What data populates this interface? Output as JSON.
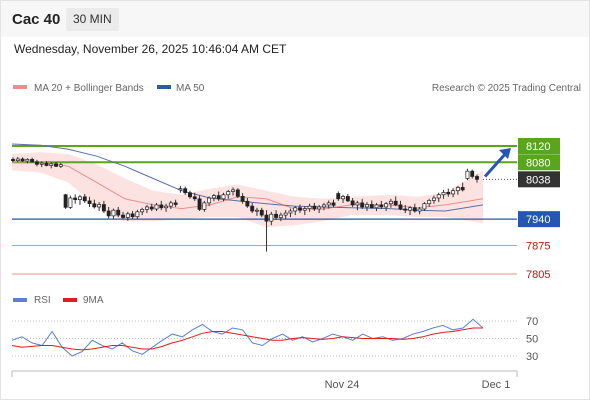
{
  "header": {
    "instrument": "Cac 40",
    "timeframe": "30 MIN",
    "timestamp": "Wednesday, November 26, 2025 10:46:04 AM CET"
  },
  "legend": {
    "ma20": {
      "label": "MA 20 + Bollinger Bands",
      "color": "#f08c8c"
    },
    "ma50": {
      "label": "MA 50",
      "color": "#2d5aa0"
    },
    "copyright": "Research © 2025 Trading Central"
  },
  "rsi_legend": {
    "rsi": {
      "label": "RSI",
      "color": "#5b7fd6"
    },
    "ma9": {
      "label": "9MA",
      "color": "#e31b1b"
    }
  },
  "levels": [
    {
      "label": "8120",
      "kind": "resistance",
      "color": "#5aa51e"
    },
    {
      "label": "8080",
      "kind": "resistance",
      "color": "#5aa51e"
    },
    {
      "label": "8038",
      "kind": "last",
      "color": "#333333"
    },
    {
      "label": "7940",
      "kind": "pivot",
      "color": "#2456b5"
    },
    {
      "label": "7875",
      "kind": "support",
      "color": "#c21313"
    },
    {
      "label": "7805",
      "kind": "support",
      "color": "#c21313"
    }
  ],
  "rsi_ticks": [
    "70",
    "50",
    "30"
  ],
  "dates": [
    "Nov 24",
    "Dec 1"
  ],
  "chart_data": {
    "type": "candlestick",
    "price_levels": [
      8120,
      8080,
      8038,
      7940,
      7875,
      7805
    ],
    "ylim": [
      7780,
      8165
    ],
    "candles": [
      [
        8087,
        8092,
        8081,
        8084
      ],
      [
        8084,
        8093,
        8080,
        8088
      ],
      [
        8088,
        8092,
        8081,
        8083
      ],
      [
        8083,
        8090,
        8077,
        8087
      ],
      [
        8087,
        8091,
        8079,
        8081
      ],
      [
        8081,
        8086,
        8070,
        8075
      ],
      [
        8075,
        8082,
        8068,
        8078
      ],
      [
        8078,
        8083,
        8070,
        8072
      ],
      [
        8072,
        8080,
        8065,
        8076
      ],
      [
        8076,
        8081,
        8068,
        8070
      ],
      [
        8070,
        8078,
        8066,
        8074
      ],
      [
        8000,
        8002,
        7965,
        7969
      ],
      [
        7969,
        7998,
        7965,
        7992
      ],
      [
        7992,
        8001,
        7978,
        7988
      ],
      [
        7988,
        8000,
        7975,
        7995
      ],
      [
        7995,
        8002,
        7980,
        7985
      ],
      [
        7985,
        7995,
        7970,
        7978
      ],
      [
        7978,
        7988,
        7966,
        7970
      ],
      [
        7970,
        7982,
        7960,
        7976
      ],
      [
        7976,
        7985,
        7955,
        7960
      ],
      [
        7960,
        7970,
        7942,
        7948
      ],
      [
        7948,
        7966,
        7940,
        7962
      ],
      [
        7962,
        7970,
        7945,
        7950
      ],
      [
        7950,
        7958,
        7940,
        7944
      ],
      [
        7944,
        7958,
        7936,
        7953
      ],
      [
        7953,
        7960,
        7940,
        7946
      ],
      [
        7946,
        7963,
        7940,
        7958
      ],
      [
        7958,
        7968,
        7950,
        7964
      ],
      [
        7964,
        7975,
        7955,
        7970
      ],
      [
        7970,
        7978,
        7960,
        7965
      ],
      [
        7965,
        7980,
        7960,
        7975
      ],
      [
        7975,
        7985,
        7962,
        7968
      ],
      [
        7968,
        7978,
        7958,
        7972
      ],
      [
        7972,
        7985,
        7965,
        7980
      ],
      [
        7980,
        7988,
        7970,
        7976
      ],
      [
        8012,
        8022,
        8005,
        8015
      ],
      [
        8015,
        8020,
        8000,
        8005
      ],
      [
        8005,
        8010,
        7990,
        7995
      ],
      [
        7995,
        8005,
        7985,
        7990
      ],
      [
        7990,
        7998,
        7960,
        7964
      ],
      [
        7964,
        7985,
        7958,
        7980
      ],
      [
        7980,
        7996,
        7972,
        7992
      ],
      [
        7992,
        8002,
        7984,
        7998
      ],
      [
        7998,
        8008,
        7985,
        7990
      ],
      [
        7990,
        8005,
        7984,
        8000
      ],
      [
        8000,
        8012,
        7990,
        8008
      ],
      [
        8008,
        8018,
        7998,
        8012
      ],
      [
        8012,
        8016,
        7992,
        7996
      ],
      [
        7996,
        8004,
        7978,
        7984
      ],
      [
        7984,
        7992,
        7968,
        7972
      ],
      [
        7972,
        7980,
        7955,
        7960
      ],
      [
        7960,
        7968,
        7948,
        7962
      ],
      [
        7962,
        7968,
        7945,
        7950
      ],
      [
        7950,
        7962,
        7860,
        7935
      ],
      [
        7935,
        7958,
        7925,
        7952
      ],
      [
        7952,
        7962,
        7938,
        7944
      ],
      [
        7944,
        7956,
        7935,
        7950
      ],
      [
        7950,
        7962,
        7940,
        7955
      ],
      [
        7955,
        7966,
        7945,
        7960
      ],
      [
        7960,
        7972,
        7950,
        7968
      ],
      [
        7968,
        7976,
        7955,
        7962
      ],
      [
        7962,
        7972,
        7950,
        7966
      ],
      [
        7966,
        7978,
        7958,
        7972
      ],
      [
        7972,
        7980,
        7960,
        7965
      ],
      [
        7965,
        7975,
        7955,
        7970
      ],
      [
        7970,
        7980,
        7962,
        7975
      ],
      [
        7975,
        7986,
        7966,
        7980
      ],
      [
        7980,
        7988,
        7970,
        7974
      ],
      [
        8003,
        8008,
        7985,
        7990
      ],
      [
        7990,
        8000,
        7980,
        7996
      ],
      [
        7996,
        8002,
        7982,
        7985
      ],
      [
        7985,
        7992,
        7970,
        7975
      ],
      [
        7975,
        7985,
        7962,
        7980
      ],
      [
        7980,
        7990,
        7965,
        7970
      ],
      [
        7970,
        7982,
        7960,
        7976
      ],
      [
        7976,
        7986,
        7966,
        7968
      ],
      [
        7968,
        7980,
        7960,
        7975
      ],
      [
        7975,
        7985,
        7965,
        7970
      ],
      [
        7970,
        7982,
        7960,
        7978
      ],
      [
        7978,
        7990,
        7968,
        7984
      ],
      [
        7984,
        7996,
        7972,
        7975
      ],
      [
        7975,
        7985,
        7962,
        7965
      ],
      [
        7965,
        7975,
        7955,
        7962
      ],
      [
        7962,
        7972,
        7950,
        7968
      ],
      [
        7968,
        7978,
        7956,
        7960
      ],
      [
        7960,
        7970,
        7952,
        7965
      ],
      [
        7965,
        7982,
        7960,
        7978
      ],
      [
        7978,
        7990,
        7970,
        7986
      ],
      [
        7986,
        7998,
        7978,
        7992
      ],
      [
        7992,
        8005,
        7982,
        8000
      ],
      [
        8000,
        8012,
        7990,
        8006
      ],
      [
        8006,
        8015,
        7995,
        8002
      ],
      [
        8002,
        8016,
        7994,
        8010
      ],
      [
        8010,
        8022,
        8000,
        8018
      ],
      [
        8018,
        8030,
        8008,
        8012
      ],
      [
        8040,
        8064,
        8036,
        8058
      ],
      [
        8058,
        8062,
        8040,
        8045
      ],
      [
        8045,
        8050,
        8030,
        8038
      ]
    ],
    "ma50": [
      [
        0,
        8125
      ],
      [
        0.06,
        8122
      ],
      [
        0.12,
        8112
      ],
      [
        0.18,
        8095
      ],
      [
        0.24,
        8070
      ],
      [
        0.3,
        8040
      ],
      [
        0.36,
        8010
      ],
      [
        0.42,
        7992
      ],
      [
        0.48,
        7985
      ],
      [
        0.54,
        7978
      ],
      [
        0.6,
        7972
      ],
      [
        0.66,
        7970
      ],
      [
        0.72,
        7968
      ],
      [
        0.8,
        7966
      ],
      [
        0.86,
        7962
      ],
      [
        0.92,
        7960
      ],
      [
        1.0,
        7975
      ]
    ],
    "ma20": [
      [
        0,
        8080
      ],
      [
        0.06,
        8082
      ],
      [
        0.12,
        8070
      ],
      [
        0.18,
        8030
      ],
      [
        0.24,
        7990
      ],
      [
        0.3,
        7975
      ],
      [
        0.36,
        7966
      ],
      [
        0.42,
        7975
      ],
      [
        0.48,
        7995
      ],
      [
        0.54,
        7990
      ],
      [
        0.6,
        7965
      ],
      [
        0.66,
        7965
      ],
      [
        0.72,
        7975
      ],
      [
        0.8,
        7975
      ],
      [
        0.86,
        7968
      ],
      [
        0.92,
        7975
      ],
      [
        1.0,
        7990
      ]
    ],
    "bb_upper": [
      [
        0,
        8100
      ],
      [
        0.06,
        8105
      ],
      [
        0.12,
        8100
      ],
      [
        0.18,
        8075
      ],
      [
        0.24,
        8040
      ],
      [
        0.3,
        8010
      ],
      [
        0.36,
        8000
      ],
      [
        0.42,
        8015
      ],
      [
        0.48,
        8025
      ],
      [
        0.54,
        8010
      ],
      [
        0.6,
        7995
      ],
      [
        0.66,
        7990
      ],
      [
        0.72,
        7995
      ],
      [
        0.8,
        8000
      ],
      [
        0.86,
        7995
      ],
      [
        0.92,
        8005
      ],
      [
        1.0,
        8060
      ]
    ],
    "bb_lower": [
      [
        0,
        8060
      ],
      [
        0.06,
        8055
      ],
      [
        0.12,
        8030
      ],
      [
        0.18,
        7970
      ],
      [
        0.24,
        7935
      ],
      [
        0.3,
        7935
      ],
      [
        0.36,
        7940
      ],
      [
        0.42,
        7945
      ],
      [
        0.48,
        7945
      ],
      [
        0.54,
        7920
      ],
      [
        0.6,
        7925
      ],
      [
        0.66,
        7935
      ],
      [
        0.72,
        7950
      ],
      [
        0.8,
        7950
      ],
      [
        0.86,
        7945
      ],
      [
        0.92,
        7945
      ],
      [
        1.0,
        7930
      ]
    ],
    "rsi": [
      48,
      52,
      45,
      42,
      58,
      40,
      30,
      35,
      48,
      42,
      38,
      45,
      36,
      32,
      40,
      48,
      55,
      52,
      60,
      66,
      58,
      55,
      62,
      60,
      45,
      42,
      50,
      55,
      48,
      52,
      46,
      50,
      55,
      52,
      48,
      55,
      50,
      52,
      48,
      50,
      55,
      58,
      62,
      65,
      60,
      62,
      72,
      62
    ],
    "rsi_ma": [
      42,
      40,
      41,
      42,
      42,
      40,
      38,
      37,
      38,
      40,
      42,
      42,
      40,
      38,
      38,
      41,
      45,
      48,
      52,
      56,
      58,
      58,
      56,
      54,
      52,
      50,
      48,
      48,
      50,
      51,
      50,
      49,
      50,
      52,
      51,
      50,
      50,
      50,
      50,
      49,
      50,
      52,
      55,
      57,
      58,
      60,
      62,
      62
    ],
    "rsi_ylim": [
      20,
      80
    ],
    "projection": {
      "from": 8040,
      "to": 8120
    }
  }
}
